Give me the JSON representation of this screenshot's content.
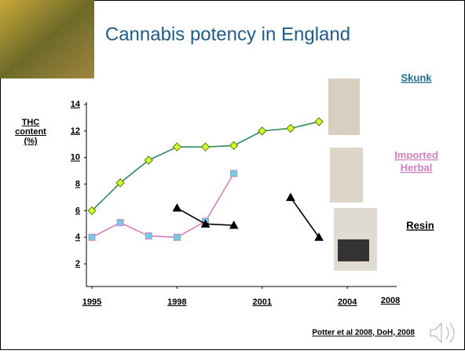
{
  "chart_data": {
    "type": "line",
    "title": "Cannabis potency in England",
    "y_label": "THC content (%)",
    "x_end_label": "2008",
    "source": "Potter et al 2008, DoH, 2008",
    "x": [
      1995,
      1996,
      1997,
      1998,
      1999,
      2000,
      2001,
      2002,
      2003
    ],
    "xlim": [
      1995,
      2005.6
    ],
    "xticks": [
      1995,
      1998,
      2001,
      2004
    ],
    "ylim": [
      0,
      14
    ],
    "yticks": [
      2,
      4,
      6,
      8,
      10,
      12,
      14
    ],
    "series": [
      {
        "name": "Skunk",
        "color": "#2e8b57",
        "marker": "diamond",
        "marker_color": "#ccff33",
        "label_color": "#1f6f8b",
        "values": [
          6,
          8.1,
          9.8,
          10.8,
          10.8,
          10.9,
          12,
          12.2,
          12.7
        ]
      },
      {
        "name": "Imported Herbal",
        "color": "#d47fbf",
        "marker": "square",
        "marker_color": "#6fcde0",
        "label_color": "#d47fbf",
        "values": [
          4,
          5.1,
          4.1,
          4.0,
          5.2,
          8.8,
          null,
          null,
          null
        ]
      },
      {
        "name": "Resin",
        "color": "#000000",
        "marker": "triangle",
        "marker_color": "#000000",
        "label_color": "#000000",
        "values": [
          null,
          null,
          null,
          6.2,
          5.0,
          4.9,
          null,
          7.0,
          4.0
        ]
      }
    ]
  }
}
